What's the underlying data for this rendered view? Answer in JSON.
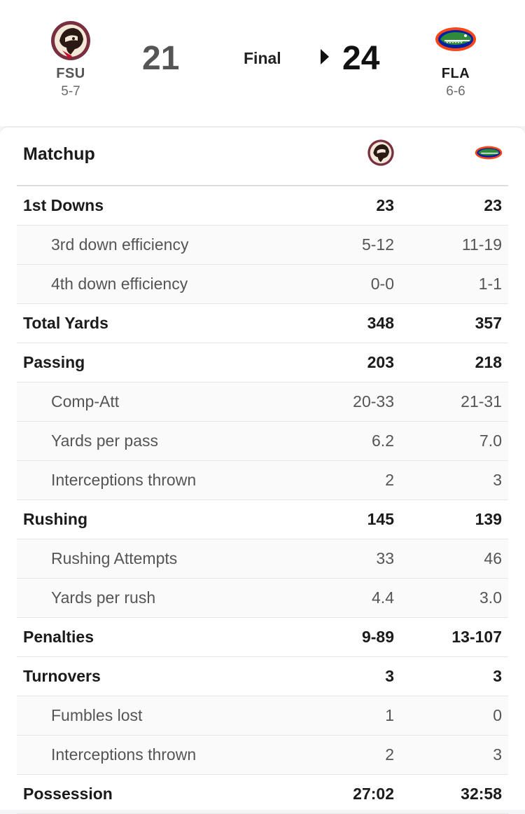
{
  "game": {
    "status": "Final",
    "away": {
      "abbr": "FSU",
      "record": "5-7",
      "score": "21",
      "logo_icon": "fsu-seminole-logo-icon",
      "color": "#782f40"
    },
    "home": {
      "abbr": "FLA",
      "record": "6-6",
      "score": "24",
      "logo_icon": "florida-gator-logo-icon",
      "color": "#0021a5"
    },
    "winner": "home"
  },
  "matchup": {
    "title": "Matchup",
    "rows": [
      {
        "label": "1st Downs",
        "away": "23",
        "home": "23",
        "level": "main"
      },
      {
        "label": "3rd down efficiency",
        "away": "5-12",
        "home": "11-19",
        "level": "sub"
      },
      {
        "label": "4th down efficiency",
        "away": "0-0",
        "home": "1-1",
        "level": "sub"
      },
      {
        "label": "Total Yards",
        "away": "348",
        "home": "357",
        "level": "main"
      },
      {
        "label": "Passing",
        "away": "203",
        "home": "218",
        "level": "main"
      },
      {
        "label": "Comp-Att",
        "away": "20-33",
        "home": "21-31",
        "level": "sub"
      },
      {
        "label": "Yards per pass",
        "away": "6.2",
        "home": "7.0",
        "level": "sub"
      },
      {
        "label": "Interceptions thrown",
        "away": "2",
        "home": "3",
        "level": "sub"
      },
      {
        "label": "Rushing",
        "away": "145",
        "home": "139",
        "level": "main"
      },
      {
        "label": "Rushing Attempts",
        "away": "33",
        "home": "46",
        "level": "sub"
      },
      {
        "label": "Yards per rush",
        "away": "4.4",
        "home": "3.0",
        "level": "sub"
      },
      {
        "label": "Penalties",
        "away": "9-89",
        "home": "13-107",
        "level": "main"
      },
      {
        "label": "Turnovers",
        "away": "3",
        "home": "3",
        "level": "main"
      },
      {
        "label": "Fumbles lost",
        "away": "1",
        "home": "0",
        "level": "sub"
      },
      {
        "label": "Interceptions thrown",
        "away": "2",
        "home": "3",
        "level": "sub"
      },
      {
        "label": "Possession",
        "away": "27:02",
        "home": "32:58",
        "level": "main"
      }
    ]
  }
}
